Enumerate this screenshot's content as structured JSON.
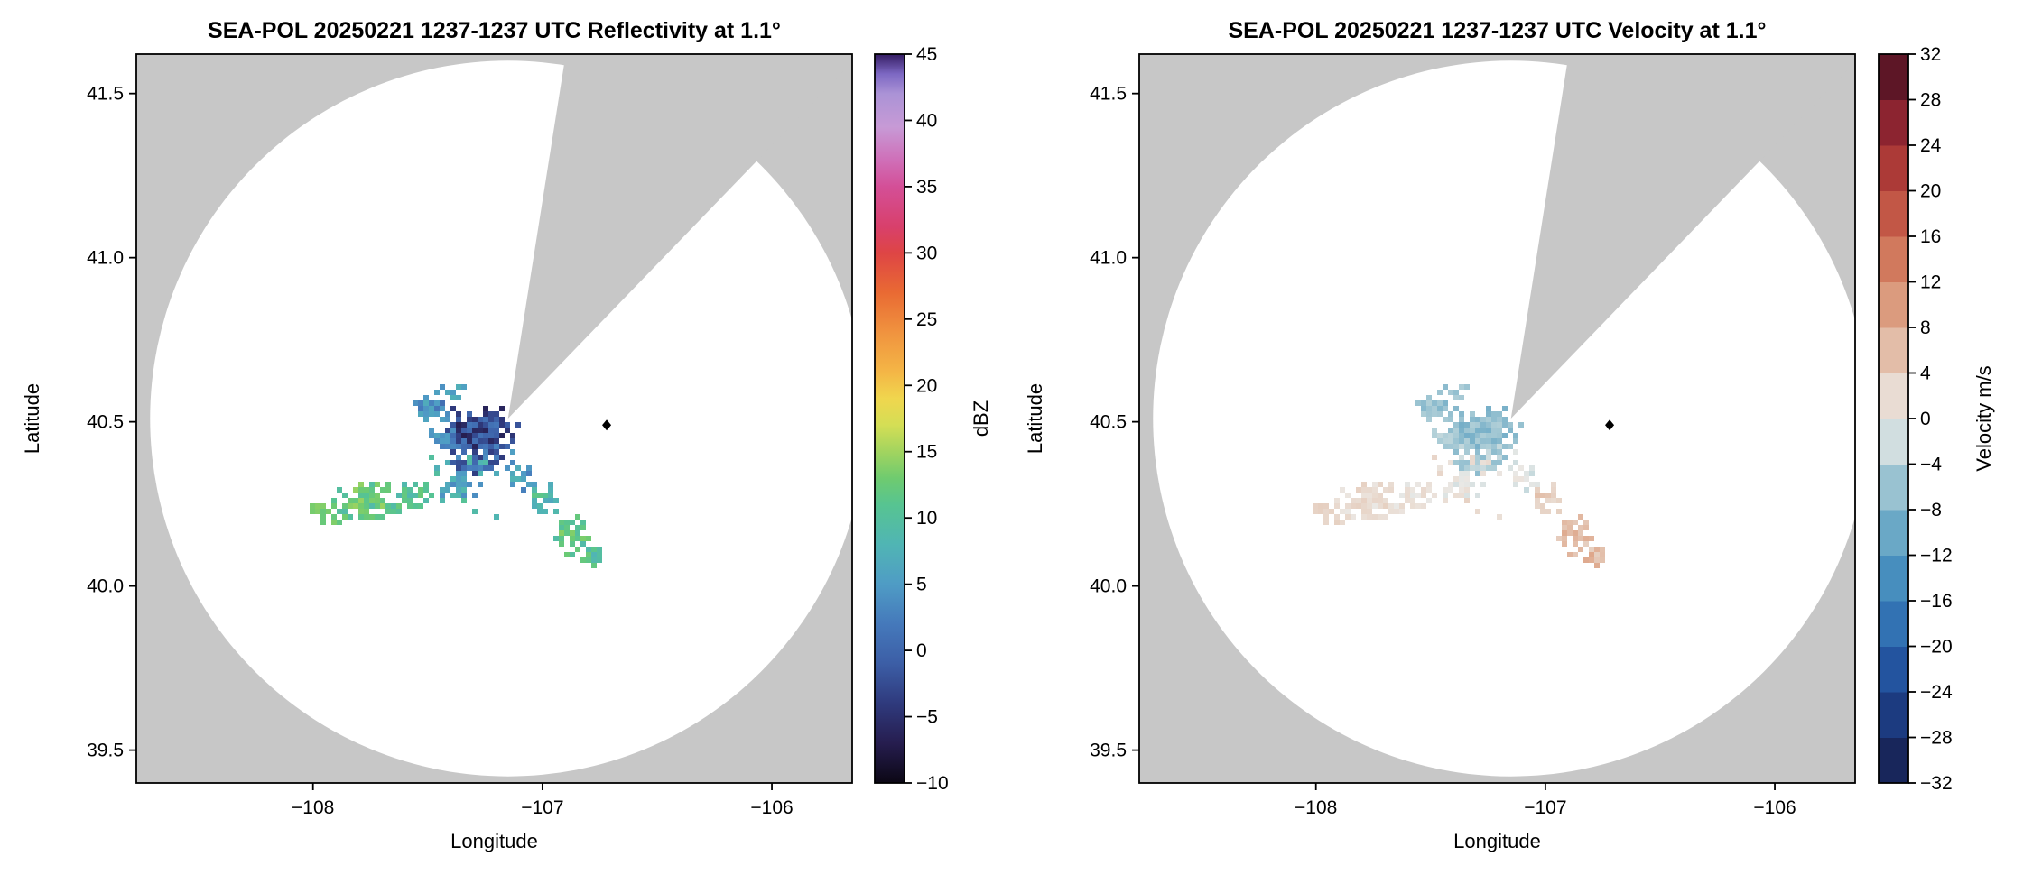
{
  "colors": {
    "background": "#ffffff",
    "out_of_range": "#c7c7c7",
    "coverage": "#ffffff",
    "text": "#000000",
    "marker": "#000000"
  },
  "chart_data": [
    {
      "id": "reflectivity",
      "type": "heatmap",
      "variant": "radar-ppi",
      "title": "SEA-POL 20250221 1237-1237 UTC Reflectivity at 1.1°",
      "xlabel": "Longitude",
      "ylabel": "Latitude",
      "xlim": [
        -108.77,
        -105.65
      ],
      "ylim": [
        39.4,
        41.62
      ],
      "xticks": [
        {
          "v": -108,
          "label": "−108"
        },
        {
          "v": -107,
          "label": "−107"
        },
        {
          "v": -106,
          "label": "−106"
        }
      ],
      "yticks": [
        {
          "v": 39.5,
          "label": "39.5"
        },
        {
          "v": 40.0,
          "label": "40.0"
        },
        {
          "v": 40.5,
          "label": "40.5"
        },
        {
          "v": 41.0,
          "label": "41.0"
        },
        {
          "v": 41.5,
          "label": "41.5"
        }
      ],
      "radar": {
        "center_lon": -107.15,
        "center_lat": 40.51,
        "radius_lon_deg": 1.56,
        "radius_lat_deg": 1.09,
        "blocked_sector_deg": [
          9,
          44
        ]
      },
      "site_marker": {
        "lon": -106.72,
        "lat": 40.49
      },
      "colorbar": {
        "label": "dBZ",
        "min": -10,
        "max": 45,
        "style": "continuous",
        "ticks": [
          {
            "v": -10,
            "label": "−10"
          },
          {
            "v": -5,
            "label": "−5"
          },
          {
            "v": 0,
            "label": "0"
          },
          {
            "v": 5,
            "label": "5"
          },
          {
            "v": 10,
            "label": "10"
          },
          {
            "v": 15,
            "label": "15"
          },
          {
            "v": 20,
            "label": "20"
          },
          {
            "v": 25,
            "label": "25"
          },
          {
            "v": 30,
            "label": "30"
          },
          {
            "v": 35,
            "label": "35"
          },
          {
            "v": 40,
            "label": "40"
          },
          {
            "v": 45,
            "label": "45"
          }
        ],
        "stops": [
          [
            -10,
            "#0b0714"
          ],
          [
            -7,
            "#261d4f"
          ],
          [
            -4,
            "#2f3a7d"
          ],
          [
            -1,
            "#3c5ea6"
          ],
          [
            2,
            "#4579bb"
          ],
          [
            5,
            "#4f9cc5"
          ],
          [
            8,
            "#50b5b4"
          ],
          [
            11,
            "#57c491"
          ],
          [
            13,
            "#6fcb6f"
          ],
          [
            15,
            "#a2d45f"
          ],
          [
            17,
            "#d4de55"
          ],
          [
            19,
            "#f0d64e"
          ],
          [
            21,
            "#f4b646"
          ],
          [
            24,
            "#f0933f"
          ],
          [
            27,
            "#e96a33"
          ],
          [
            30,
            "#de4545"
          ],
          [
            32,
            "#d8406c"
          ],
          [
            35,
            "#d44f97"
          ],
          [
            37,
            "#cf6fb8"
          ],
          [
            39.5,
            "#c79ad6"
          ],
          [
            42,
            "#ab93d6"
          ],
          [
            43.5,
            "#7d68c3"
          ],
          [
            45,
            "#331b61"
          ]
        ]
      },
      "echo_clusters": [
        {
          "cx": -107.49,
          "cy": 40.545,
          "rx": 0.06,
          "ry": 0.028,
          "n": 40,
          "vmin": 1,
          "vmax": 7,
          "seed": 11
        },
        {
          "cx": -107.28,
          "cy": 40.48,
          "rx": 0.13,
          "ry": 0.055,
          "n": 160,
          "vmin": -7,
          "vmax": 2,
          "seed": 12
        },
        {
          "cx": -107.3,
          "cy": 40.39,
          "rx": 0.09,
          "ry": 0.032,
          "n": 55,
          "vmin": -4,
          "vmax": 4,
          "seed": 13
        },
        {
          "cx": -107.44,
          "cy": 40.455,
          "rx": 0.05,
          "ry": 0.03,
          "n": 25,
          "vmin": 0,
          "vmax": 6,
          "seed": 14
        },
        {
          "cx": -107.1,
          "cy": 40.35,
          "rx": 0.055,
          "ry": 0.05,
          "n": 22,
          "vmin": 2,
          "vmax": 8,
          "seed": 15
        },
        {
          "cx": -107.38,
          "cy": 40.31,
          "rx": 0.09,
          "ry": 0.045,
          "n": 30,
          "vmin": 3,
          "vmax": 9,
          "seed": 16
        },
        {
          "cx": -107.78,
          "cy": 40.26,
          "rx": 0.14,
          "ry": 0.05,
          "n": 90,
          "vmin": 9,
          "vmax": 15,
          "seed": 17
        },
        {
          "cx": -107.58,
          "cy": 40.28,
          "rx": 0.08,
          "ry": 0.04,
          "n": 35,
          "vmin": 8,
          "vmax": 13,
          "seed": 18
        },
        {
          "cx": -107.95,
          "cy": 40.235,
          "rx": 0.05,
          "ry": 0.035,
          "n": 18,
          "vmin": 10,
          "vmax": 14,
          "seed": 19
        },
        {
          "cx": -107.0,
          "cy": 40.27,
          "rx": 0.05,
          "ry": 0.05,
          "n": 24,
          "vmin": 6,
          "vmax": 12,
          "seed": 20
        },
        {
          "cx": -106.88,
          "cy": 40.16,
          "rx": 0.07,
          "ry": 0.055,
          "n": 40,
          "vmin": 9,
          "vmax": 14,
          "seed": 21
        },
        {
          "cx": -106.78,
          "cy": 40.1,
          "rx": 0.05,
          "ry": 0.033,
          "n": 18,
          "vmin": 8,
          "vmax": 13,
          "seed": 22
        },
        {
          "cx": -107.42,
          "cy": 40.6,
          "rx": 0.055,
          "ry": 0.02,
          "n": 10,
          "vmin": 4,
          "vmax": 9,
          "seed": 23
        },
        {
          "cx": -107.3,
          "cy": 40.3,
          "rx": 0.22,
          "ry": 0.1,
          "n": 12,
          "vmin": 5,
          "vmax": 11,
          "seed": 24
        }
      ]
    },
    {
      "id": "velocity",
      "type": "heatmap",
      "variant": "radar-ppi",
      "title": "SEA-POL 20250221 1237-1237 UTC Velocity at 1.1°",
      "xlabel": "Longitude",
      "ylabel": "Latitude",
      "xlim": [
        -108.77,
        -105.65
      ],
      "ylim": [
        39.4,
        41.62
      ],
      "xticks": [
        {
          "v": -108,
          "label": "−108"
        },
        {
          "v": -107,
          "label": "−107"
        },
        {
          "v": -106,
          "label": "−106"
        }
      ],
      "yticks": [
        {
          "v": 39.5,
          "label": "39.5"
        },
        {
          "v": 40.0,
          "label": "40.0"
        },
        {
          "v": 40.5,
          "label": "40.5"
        },
        {
          "v": 41.0,
          "label": "41.0"
        },
        {
          "v": 41.5,
          "label": "41.5"
        }
      ],
      "radar": {
        "center_lon": -107.15,
        "center_lat": 40.51,
        "radius_lon_deg": 1.56,
        "radius_lat_deg": 1.09,
        "blocked_sector_deg": [
          9,
          44
        ]
      },
      "site_marker": {
        "lon": -106.72,
        "lat": 40.49
      },
      "colorbar": {
        "label": "Velocity m/s",
        "min": -32,
        "max": 32,
        "style": "discrete",
        "band_step": 4,
        "ticks": [
          {
            "v": -32,
            "label": "−32"
          },
          {
            "v": -28,
            "label": "−28"
          },
          {
            "v": -24,
            "label": "−24"
          },
          {
            "v": -20,
            "label": "−20"
          },
          {
            "v": -16,
            "label": "−16"
          },
          {
            "v": -12,
            "label": "−12"
          },
          {
            "v": -8,
            "label": "−8"
          },
          {
            "v": -4,
            "label": "−4"
          },
          {
            "v": 0,
            "label": "0"
          },
          {
            "v": 4,
            "label": "4"
          },
          {
            "v": 8,
            "label": "8"
          },
          {
            "v": 12,
            "label": "12"
          },
          {
            "v": 16,
            "label": "16"
          },
          {
            "v": 20,
            "label": "20"
          },
          {
            "v": 24,
            "label": "24"
          },
          {
            "v": 28,
            "label": "28"
          },
          {
            "v": 32,
            "label": "32"
          }
        ],
        "stops": [
          [
            -32,
            "#151d49"
          ],
          [
            -28,
            "#1a2f6d"
          ],
          [
            -24,
            "#1d4692"
          ],
          [
            -20,
            "#2962ac"
          ],
          [
            -16,
            "#3a81ba"
          ],
          [
            -12,
            "#549bc1"
          ],
          [
            -8,
            "#7fb4ca"
          ],
          [
            -4,
            "#b2d0d8"
          ],
          [
            -1,
            "#e0e5e4"
          ],
          [
            0,
            "#eae8e5"
          ],
          [
            1,
            "#ebe3dc"
          ],
          [
            4,
            "#e6cfc0"
          ],
          [
            8,
            "#dfab90"
          ],
          [
            12,
            "#d78a6b"
          ],
          [
            16,
            "#cb674f"
          ],
          [
            20,
            "#b9473c"
          ],
          [
            24,
            "#9e2c32"
          ],
          [
            28,
            "#7a1b2d"
          ],
          [
            32,
            "#40101e"
          ]
        ]
      },
      "echo_clusters": [
        {
          "cx": -107.49,
          "cy": 40.545,
          "rx": 0.06,
          "ry": 0.028,
          "n": 40,
          "vmin": -8,
          "vmax": -4,
          "seed": 11
        },
        {
          "cx": -107.28,
          "cy": 40.48,
          "rx": 0.13,
          "ry": 0.055,
          "n": 160,
          "vmin": -9,
          "vmax": -4,
          "seed": 12
        },
        {
          "cx": -107.3,
          "cy": 40.39,
          "rx": 0.09,
          "ry": 0.032,
          "n": 55,
          "vmin": -7,
          "vmax": -2,
          "seed": 13
        },
        {
          "cx": -107.44,
          "cy": 40.455,
          "rx": 0.05,
          "ry": 0.03,
          "n": 25,
          "vmin": -7,
          "vmax": -3,
          "seed": 14
        },
        {
          "cx": -107.1,
          "cy": 40.35,
          "rx": 0.055,
          "ry": 0.05,
          "n": 22,
          "vmin": -3,
          "vmax": 1,
          "seed": 15
        },
        {
          "cx": -107.38,
          "cy": 40.31,
          "rx": 0.09,
          "ry": 0.045,
          "n": 30,
          "vmin": -2,
          "vmax": 2,
          "seed": 16
        },
        {
          "cx": -107.78,
          "cy": 40.26,
          "rx": 0.14,
          "ry": 0.05,
          "n": 90,
          "vmin": 0,
          "vmax": 4,
          "seed": 17
        },
        {
          "cx": -107.58,
          "cy": 40.28,
          "rx": 0.08,
          "ry": 0.04,
          "n": 35,
          "vmin": -1,
          "vmax": 3,
          "seed": 18
        },
        {
          "cx": -107.95,
          "cy": 40.235,
          "rx": 0.05,
          "ry": 0.035,
          "n": 18,
          "vmin": 1,
          "vmax": 4,
          "seed": 19
        },
        {
          "cx": -107.0,
          "cy": 40.27,
          "rx": 0.05,
          "ry": 0.05,
          "n": 24,
          "vmin": 2,
          "vmax": 6,
          "seed": 20
        },
        {
          "cx": -106.88,
          "cy": 40.16,
          "rx": 0.07,
          "ry": 0.055,
          "n": 40,
          "vmin": 4,
          "vmax": 8,
          "seed": 21
        },
        {
          "cx": -106.78,
          "cy": 40.1,
          "rx": 0.05,
          "ry": 0.033,
          "n": 18,
          "vmin": 4,
          "vmax": 9,
          "seed": 22
        },
        {
          "cx": -107.42,
          "cy": 40.6,
          "rx": 0.055,
          "ry": 0.02,
          "n": 10,
          "vmin": -7,
          "vmax": -3,
          "seed": 23
        },
        {
          "cx": -107.3,
          "cy": 40.3,
          "rx": 0.22,
          "ry": 0.1,
          "n": 12,
          "vmin": -1,
          "vmax": 4,
          "seed": 24
        }
      ]
    }
  ]
}
